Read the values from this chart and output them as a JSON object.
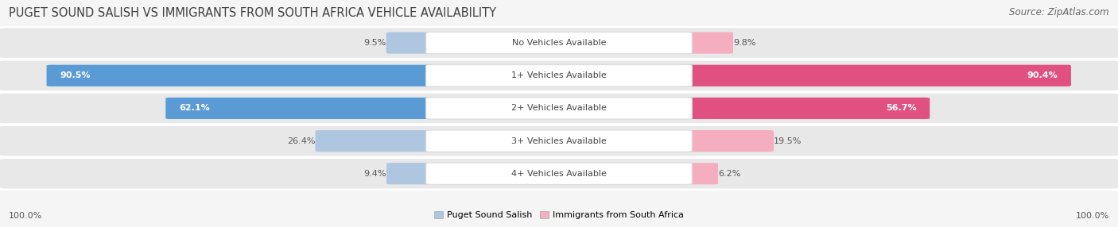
{
  "title": "PUGET SOUND SALISH VS IMMIGRANTS FROM SOUTH AFRICA VEHICLE AVAILABILITY",
  "source": "Source: ZipAtlas.com",
  "categories": [
    "No Vehicles Available",
    "1+ Vehicles Available",
    "2+ Vehicles Available",
    "3+ Vehicles Available",
    "4+ Vehicles Available"
  ],
  "salish_values": [
    9.5,
    90.5,
    62.1,
    26.4,
    9.4
  ],
  "immigrant_values": [
    9.8,
    90.4,
    56.7,
    19.5,
    6.2
  ],
  "salish_color_light": "#aec6e0",
  "salish_color_dark": "#5b9bd5",
  "immigrant_color_light": "#f4aec0",
  "immigrant_color_dark": "#e05080",
  "bg_color": "#f5f5f5",
  "row_bg": "#e8e8e8",
  "label_bg": "#ffffff",
  "max_value": 100.0,
  "legend_salish": "Puget Sound Salish",
  "legend_immigrant": "Immigrants from South Africa",
  "title_fontsize": 10.5,
  "source_fontsize": 8.5,
  "label_fontsize": 8,
  "value_fontsize": 8,
  "footer_fontsize": 8,
  "dark_threshold": 40
}
